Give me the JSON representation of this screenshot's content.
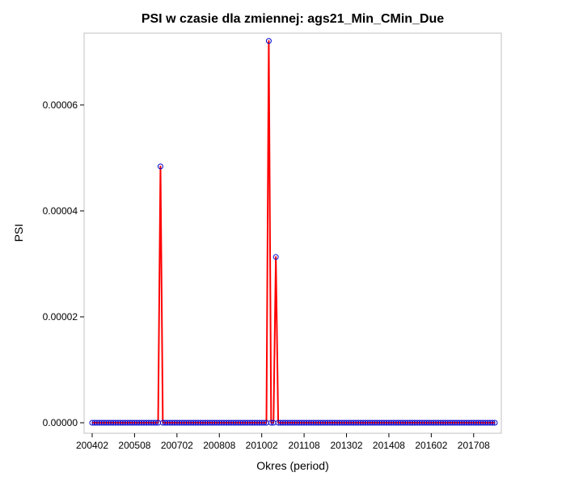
{
  "chart_data": {
    "type": "line",
    "title": "PSI w czasie dla zmiennej: ags21_Min_CMin_Due",
    "xlabel": "Okres (period)",
    "ylabel": "PSI",
    "x_start": "200402",
    "x_tick_labels": [
      "200402",
      "200508",
      "200702",
      "200808",
      "201002",
      "201108",
      "201302",
      "201408",
      "201602",
      "201708"
    ],
    "ylim": [
      0,
      7.25e-05
    ],
    "y_ticks": [
      0,
      2e-05,
      4e-05,
      6e-05
    ],
    "y_tick_labels": [
      "0.00000",
      "0.00002",
      "0.00004",
      "0.00006"
    ],
    "grid": false,
    "line_color": "#ff0000",
    "marker_color": "#0000cc",
    "series": [
      {
        "values": [
          0,
          0,
          0,
          0,
          0,
          0,
          0,
          0,
          0,
          0,
          0,
          0,
          0,
          0,
          0,
          0,
          0,
          0,
          0,
          0,
          0,
          0,
          0,
          0,
          0,
          0,
          0,
          0,
          0,
          4.84e-05,
          0,
          0,
          0,
          0,
          0,
          0,
          0,
          0,
          0,
          0,
          0,
          0,
          0,
          0,
          0,
          0,
          0,
          0,
          0,
          0,
          0,
          0,
          0,
          0,
          0,
          0,
          0,
          0,
          0,
          0,
          0,
          0,
          0,
          0,
          0,
          0,
          0,
          0,
          0,
          0,
          0,
          0,
          0,
          0,
          0,
          7.21e-05,
          0,
          0,
          3.13e-05,
          0,
          0,
          0,
          0,
          0,
          0,
          0,
          0,
          0,
          0,
          0,
          0,
          0,
          0,
          0,
          0,
          0,
          0,
          0,
          0,
          0,
          0,
          0,
          0,
          0,
          0,
          0,
          0,
          0,
          0,
          0,
          0,
          0,
          0,
          0,
          0,
          0,
          0,
          0,
          0,
          0,
          0,
          0,
          0,
          0,
          0,
          0,
          0,
          0,
          0,
          0,
          0,
          0,
          0,
          0,
          0,
          0,
          0,
          0,
          0,
          0,
          0,
          0,
          0,
          0,
          0,
          0,
          0,
          0,
          0,
          0,
          0,
          0,
          0,
          0,
          0,
          0,
          0,
          0,
          0,
          0,
          0,
          0,
          0,
          0,
          0,
          0,
          0,
          0,
          0,
          0,
          0,
          0
        ]
      }
    ]
  }
}
